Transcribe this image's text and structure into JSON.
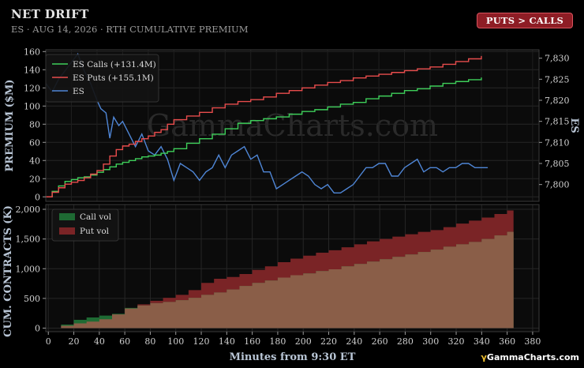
{
  "header": {
    "title": "NET DRIFT",
    "subtitle": "ES · AUG 14, 2026 · RTH CUMULATIVE PREMIUM",
    "badge": "PUTS > CALLS"
  },
  "watermark": "GammaCharts.com",
  "brand": "GammaCharts.com",
  "colors": {
    "background": "#000000",
    "panel": "#0b0b0b",
    "calls": "#3ecf5a",
    "puts": "#e84c4c",
    "es": "#4f86d6",
    "call_vol": "#1e6a33",
    "put_vol": "#7a2426",
    "overlap": "#8a5e48",
    "badge_bg": "#8e1d25",
    "badge_border": "#d9535e"
  },
  "chart_data": [
    {
      "type": "line",
      "xlabel": "",
      "ylabel": "PREMIUM ($M)",
      "ylabel_right": "ES",
      "xlim": [
        0,
        385
      ],
      "ylim": [
        -5,
        162
      ],
      "ylim_right": [
        7796,
        7832
      ],
      "yticks": [
        0,
        20,
        40,
        60,
        80,
        100,
        120,
        140,
        160
      ],
      "yticks_right": [
        7800,
        7805,
        7810,
        7815,
        7820,
        7825,
        7830
      ],
      "ytick_labels_right": [
        "7,800",
        "7,805",
        "7,810",
        "7,815",
        "7,820",
        "7,825",
        "7,830"
      ],
      "grid": true,
      "legend": "top-left",
      "series": [
        {
          "name": "ES Calls (+131.4M)",
          "axis": "left",
          "x": [
            0,
            5,
            10,
            15,
            20,
            25,
            30,
            35,
            40,
            45,
            50,
            55,
            60,
            65,
            70,
            75,
            80,
            85,
            90,
            95,
            100,
            110,
            120,
            130,
            140,
            150,
            160,
            170,
            180,
            190,
            200,
            210,
            220,
            230,
            240,
            250,
            260,
            270,
            280,
            290,
            300,
            310,
            320,
            330,
            340
          ],
          "y": [
            0,
            6,
            12,
            17,
            19,
            21,
            22,
            24,
            27,
            30,
            33,
            36,
            38,
            40,
            42,
            44,
            45,
            46,
            48,
            50,
            53,
            59,
            64,
            69,
            75,
            81,
            84,
            86,
            88,
            91,
            94,
            96,
            99,
            102,
            104,
            108,
            111,
            114,
            117,
            119,
            122,
            125,
            127,
            129,
            131.4
          ]
        },
        {
          "name": "ES Puts (+155.1M)",
          "axis": "left",
          "x": [
            0,
            5,
            10,
            15,
            20,
            25,
            30,
            35,
            40,
            45,
            50,
            55,
            60,
            65,
            70,
            75,
            80,
            85,
            90,
            95,
            100,
            110,
            120,
            130,
            140,
            150,
            160,
            170,
            180,
            190,
            200,
            210,
            220,
            230,
            240,
            250,
            260,
            270,
            280,
            290,
            300,
            310,
            320,
            330,
            340
          ],
          "y": [
            0,
            5,
            10,
            14,
            16,
            18,
            21,
            25,
            29,
            36,
            45,
            52,
            56,
            58,
            61,
            64,
            67,
            71,
            74,
            80,
            85,
            89,
            93,
            98,
            102,
            105,
            107,
            110,
            114,
            117,
            120,
            123,
            126,
            128,
            131,
            133,
            135,
            137,
            139,
            141,
            143,
            146,
            149,
            152,
            155.1
          ]
        },
        {
          "name": "ES",
          "axis": "right",
          "x": [
            0,
            5,
            10,
            15,
            20,
            25,
            30,
            35,
            40,
            43,
            47,
            50,
            53,
            57,
            60,
            65,
            70,
            75,
            80,
            85,
            90,
            95,
            100,
            105,
            110,
            115,
            120,
            125,
            130,
            135,
            140,
            145,
            150,
            155,
            160,
            165,
            170,
            175,
            180,
            185,
            190,
            195,
            200,
            205,
            210,
            215,
            220,
            225,
            230,
            235,
            240,
            245,
            250,
            255,
            260,
            265,
            270,
            275,
            280,
            285,
            290,
            295,
            300,
            305,
            310,
            315,
            320,
            325,
            330,
            335,
            340,
            345
          ],
          "y": [
            7824,
            7822,
            7825,
            7827,
            7829,
            7831,
            7827,
            7824,
            7820,
            7818,
            7817,
            7811,
            7816,
            7814,
            7815,
            7812,
            7809,
            7812,
            7808,
            7807,
            7809,
            7806,
            7801,
            7805,
            7804,
            7803,
            7801,
            7803,
            7804,
            7807,
            7804,
            7807,
            7808,
            7809,
            7806,
            7807,
            7803,
            7803,
            7799,
            7800,
            7801,
            7802,
            7803,
            7802,
            7800,
            7799,
            7800,
            7798,
            7798,
            7799,
            7800,
            7802,
            7804,
            7804,
            7805,
            7805,
            7802,
            7802,
            7804,
            7805,
            7806,
            7803,
            7804,
            7804,
            7803,
            7804,
            7804,
            7805,
            7805,
            7804,
            7804,
            7804
          ]
        }
      ]
    },
    {
      "type": "area",
      "xlabel": "Minutes from 9:30 ET",
      "ylabel": "CUM. CONTRACTS (K)",
      "xlim": [
        -2,
        385
      ],
      "ylim": [
        -60,
        2080
      ],
      "xticks": [
        0,
        20,
        40,
        60,
        80,
        100,
        120,
        140,
        160,
        180,
        200,
        220,
        240,
        260,
        280,
        300,
        320,
        340,
        360,
        380
      ],
      "yticks": [
        0,
        500,
        1000,
        1500,
        2000
      ],
      "ytick_labels": [
        "0",
        "500",
        "1,000",
        "1,500",
        "2,000"
      ],
      "grid": true,
      "legend": "top-left",
      "series": [
        {
          "name": "Call vol",
          "x": [
            0,
            10,
            20,
            30,
            40,
            50,
            60,
            70,
            80,
            90,
            100,
            110,
            120,
            130,
            140,
            150,
            160,
            170,
            180,
            190,
            200,
            210,
            220,
            230,
            240,
            250,
            260,
            270,
            280,
            290,
            300,
            310,
            320,
            330,
            340,
            350,
            360,
            365
          ],
          "y": [
            0,
            60,
            140,
            180,
            210,
            240,
            340,
            380,
            420,
            440,
            470,
            510,
            560,
            600,
            650,
            710,
            760,
            800,
            850,
            890,
            920,
            960,
            990,
            1040,
            1080,
            1120,
            1160,
            1200,
            1240,
            1280,
            1320,
            1370,
            1410,
            1450,
            1500,
            1560,
            1620,
            1680
          ]
        },
        {
          "name": "Put vol",
          "x": [
            0,
            10,
            20,
            30,
            40,
            50,
            60,
            70,
            80,
            90,
            100,
            110,
            120,
            130,
            140,
            150,
            160,
            170,
            180,
            190,
            200,
            210,
            220,
            230,
            240,
            250,
            260,
            270,
            280,
            290,
            300,
            310,
            320,
            330,
            340,
            350,
            360,
            365
          ],
          "y": [
            0,
            40,
            80,
            110,
            150,
            230,
            330,
            400,
            460,
            510,
            560,
            640,
            760,
            830,
            860,
            910,
            980,
            1040,
            1110,
            1170,
            1220,
            1270,
            1310,
            1360,
            1410,
            1460,
            1500,
            1540,
            1580,
            1620,
            1650,
            1700,
            1760,
            1810,
            1860,
            1920,
            1980,
            2010
          ]
        }
      ]
    }
  ]
}
